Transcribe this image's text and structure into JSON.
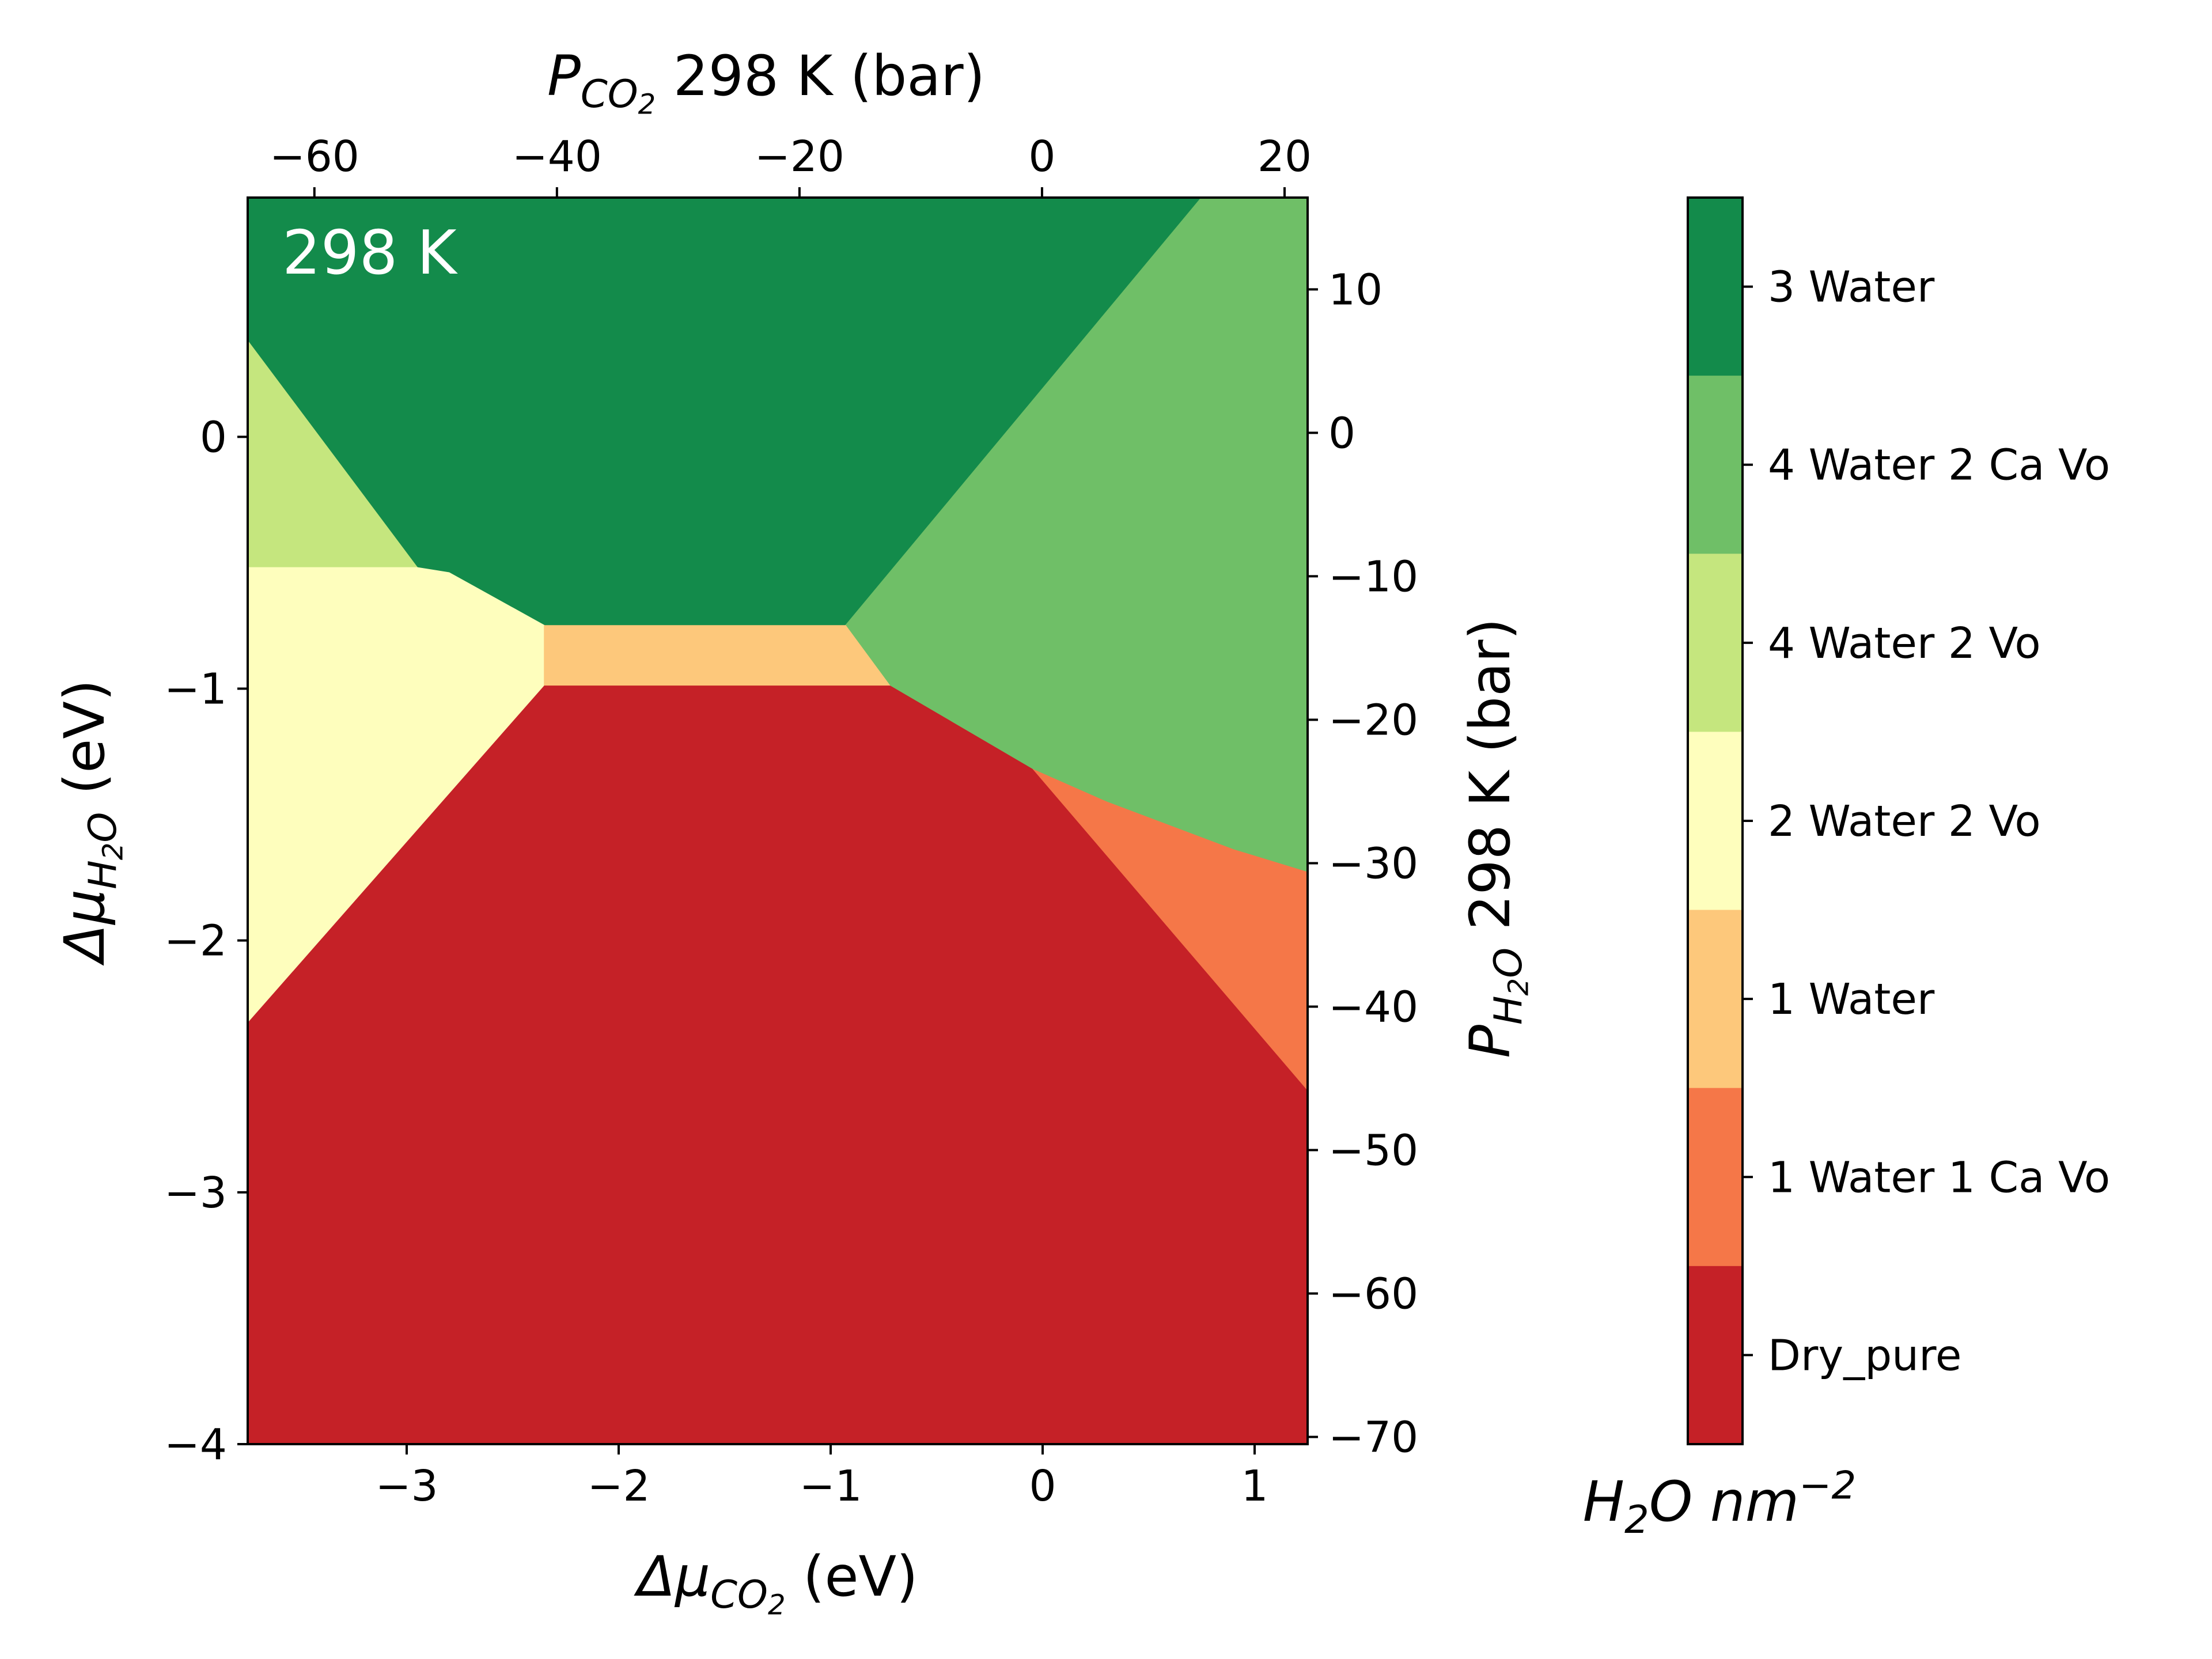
{
  "chart_data": {
    "type": "heatmap",
    "annotation": "298 K",
    "xlabel": {
      "base": "Δμ",
      "sub": "CO",
      "subsub": "2",
      "tail": " (eV)"
    },
    "ylabel": {
      "base": "Δμ",
      "sub": "H",
      "subsub": "2",
      "subtail": "O",
      "tail": " (eV)"
    },
    "top_xlabel": {
      "base": "P",
      "sub": "CO",
      "subsub": "2",
      "tail": " 298 K (bar)"
    },
    "right_ylabel": {
      "base": "P",
      "sub": "H",
      "subsub": "2",
      "subtail": "O",
      "tail": " 298 K (bar)"
    },
    "colorbar_label": {
      "text1": "H",
      "sub": "2",
      "text2": "O nm",
      "sup": "−2"
    },
    "xlim": [
      -3.75,
      1.25
    ],
    "ylim": [
      -4.0,
      0.95
    ],
    "top_xlim": [
      -65.5,
      21.9
    ],
    "right_ylim": [
      -70.5,
      16.4
    ],
    "x_ticks": [
      {
        "value": -3,
        "label": "−3"
      },
      {
        "value": -2,
        "label": "−2"
      },
      {
        "value": -1,
        "label": "−1"
      },
      {
        "value": 0,
        "label": "0"
      },
      {
        "value": 1,
        "label": "1"
      }
    ],
    "y_ticks": [
      {
        "value": 0,
        "label": "0"
      },
      {
        "value": -1,
        "label": "−1"
      },
      {
        "value": -2,
        "label": "−2"
      },
      {
        "value": -3,
        "label": "−3"
      },
      {
        "value": -4,
        "label": "−4"
      }
    ],
    "top_ticks": [
      {
        "value": -60,
        "label": "−60"
      },
      {
        "value": -40,
        "label": "−40"
      },
      {
        "value": -20,
        "label": "−20"
      },
      {
        "value": 0,
        "label": "0"
      },
      {
        "value": 20,
        "label": "20"
      }
    ],
    "right_ticks": [
      {
        "value": 10,
        "label": "10"
      },
      {
        "value": 0,
        "label": "0"
      },
      {
        "value": -10,
        "label": "−10"
      },
      {
        "value": -20,
        "label": "−20"
      },
      {
        "value": -30,
        "label": "−30"
      },
      {
        "value": -40,
        "label": "−40"
      },
      {
        "value": -50,
        "label": "−50"
      },
      {
        "value": -60,
        "label": "−60"
      },
      {
        "value": -70,
        "label": "−70"
      }
    ],
    "legend_placement": "colorbar-right",
    "phases": [
      {
        "name": "3 Water",
        "color": "#138b4b",
        "polygon": [
          [
            -3.75,
            0.95
          ],
          [
            0.75,
            0.95
          ],
          [
            -0.93,
            -0.75
          ],
          [
            -2.35,
            -0.75
          ],
          [
            -2.8,
            -0.54
          ],
          [
            -2.95,
            -0.52
          ],
          [
            -3.75,
            0.38
          ]
        ]
      },
      {
        "name": "4 Water 2 Ca Vo",
        "color": "#6fbf67",
        "polygon": [
          [
            0.75,
            0.95
          ],
          [
            1.25,
            0.95
          ],
          [
            1.25,
            -1.73
          ],
          [
            0.9,
            -1.64
          ],
          [
            0.3,
            -1.45
          ],
          [
            -0.05,
            -1.32
          ],
          [
            -0.72,
            -1.0
          ],
          [
            -0.93,
            -0.75
          ]
        ]
      },
      {
        "name": "4 Water 2 Vo",
        "color": "#c5e67e",
        "polygon": [
          [
            -3.75,
            0.38
          ],
          [
            -2.95,
            -0.52
          ],
          [
            -3.75,
            -0.52
          ]
        ]
      },
      {
        "name": "2 Water 2 Vo",
        "color": "#fefebd",
        "polygon": [
          [
            -3.75,
            -0.52
          ],
          [
            -2.95,
            -0.52
          ],
          [
            -2.8,
            -0.54
          ],
          [
            -2.35,
            -0.75
          ],
          [
            -2.35,
            -0.99
          ],
          [
            -3.75,
            -2.33
          ]
        ]
      },
      {
        "name": "1 Water",
        "color": "#fdc87b",
        "polygon": [
          [
            -2.35,
            -0.75
          ],
          [
            -0.93,
            -0.75
          ],
          [
            -0.72,
            -0.99
          ],
          [
            -2.35,
            -0.99
          ]
        ]
      },
      {
        "name": "1 Water 1 Ca Vo",
        "color": "#f57748",
        "polygon": [
          [
            -0.05,
            -1.32
          ],
          [
            0.3,
            -1.45
          ],
          [
            0.9,
            -1.64
          ],
          [
            1.25,
            -1.73
          ],
          [
            1.25,
            -2.6
          ]
        ]
      },
      {
        "name": "Dry_pure",
        "color": "#c52127",
        "polygon": [
          [
            -3.75,
            -2.33
          ],
          [
            -2.35,
            -0.99
          ],
          [
            -0.72,
            -0.99
          ],
          [
            -0.05,
            -1.32
          ],
          [
            1.25,
            -2.6
          ],
          [
            1.25,
            -4.0
          ],
          [
            -3.75,
            -4.0
          ]
        ]
      }
    ],
    "colorbar": [
      {
        "label": "3 Water",
        "color": "#138b4b"
      },
      {
        "label": "4 Water 2 Ca Vo",
        "color": "#6fbf67"
      },
      {
        "label": "4 Water 2 Vo",
        "color": "#c5e67e"
      },
      {
        "label": "2 Water 2 Vo",
        "color": "#fefebd"
      },
      {
        "label": "1 Water",
        "color": "#fdc87b"
      },
      {
        "label": "1 Water 1 Ca Vo",
        "color": "#f57748"
      },
      {
        "label": "Dry_pure",
        "color": "#c52127"
      }
    ]
  }
}
